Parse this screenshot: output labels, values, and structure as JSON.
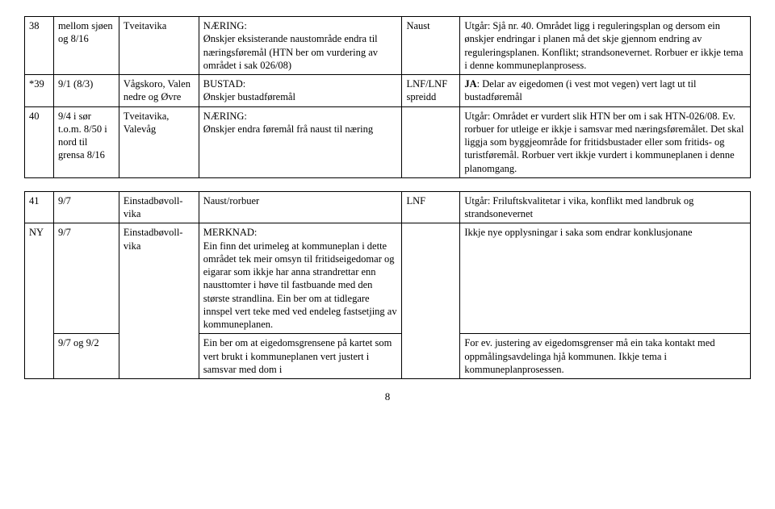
{
  "table1": {
    "rows": [
      {
        "num": "38",
        "parcel": "mellom sjøen og 8/16",
        "place": "Tveitavika",
        "desc_label": "NÆRING:",
        "desc_body": "Ønskjer eksisterande naustområde endra til næringsføremål (HTN ber om vurdering av området i sak 026/08)",
        "type": "Naust",
        "comment": "Utgår: Sjå nr. 40. Området ligg i reguleringsplan og dersom ein ønskjer endringar i planen må det skje gjennom endring av reguleringsplanen. Konflikt; strandsonevernet. Rorbuer er ikkje tema i denne kommuneplanprosess."
      },
      {
        "num": "*39",
        "parcel": "9/1 (8/3)",
        "place": "Vågskoro, Valen nedre og Øvre",
        "desc_label": "BUSTAD:",
        "desc_body": "Ønskjer bustadføremål",
        "type": "LNF/LNF spreidd",
        "comment_bold": "JA",
        "comment": ": Delar av eigedomen (i vest mot vegen) vert lagt ut til bustadføremål"
      },
      {
        "num": "40",
        "parcel": "9/4 i sør t.o.m. 8/50 i nord til grensa 8/16",
        "place": "Tveitavika, Valevåg",
        "desc_label": "NÆRING:",
        "desc_body": "Ønskjer endra føremål frå naust til næring",
        "type": "",
        "comment": "Utgår: Området er vurdert slik HTN ber om i sak HTN-026/08. Ev. rorbuer for utleige er ikkje i samsvar med næringsføremålet. Det skal liggja som byggjeområde for fritidsbustader eller som fritids- og turistføremål. Rorbuer vert ikkje vurdert i kommuneplanen i denne planomgang."
      }
    ]
  },
  "table2": {
    "rows": [
      {
        "num": "41",
        "parcel": "9/7",
        "place": "Einstadbøvoll-vika",
        "desc": "Naust/rorbuer",
        "type": "LNF",
        "comment": "Utgår: Friluftskvalitetar i vika, konflikt med landbruk og strandsonevernet"
      },
      {
        "num": "NY",
        "parcel": "9/7",
        "place": "Einstadbøvoll-vika",
        "desc_label": "MERKNAD:",
        "desc_body": "Ein finn det urimeleg at kommuneplan i dette området tek meir omsyn til fritidseigedomar og eigarar som ikkje har anna strandrettar enn nausttomter i høve til fastbuande med den største strandlina. Ein ber om at tidlegare innspel vert teke med ved endeleg fastsetjing av kommuneplanen.",
        "type": "",
        "comment": "Ikkje nye opplysningar i saka som endrar konklusjonane"
      },
      {
        "num": "",
        "parcel": "9/7 og 9/2",
        "place": "",
        "desc": "Ein ber om at eigedomsgrensene på kartet som vert brukt i kommuneplanen vert justert i samsvar med dom i",
        "type": "",
        "comment": "For ev. justering av eigedomsgrenser må ein taka kontakt med oppmålingsavdelinga hjå kommunen. Ikkje tema i kommuneplanprosessen."
      }
    ]
  },
  "page_number": "8"
}
